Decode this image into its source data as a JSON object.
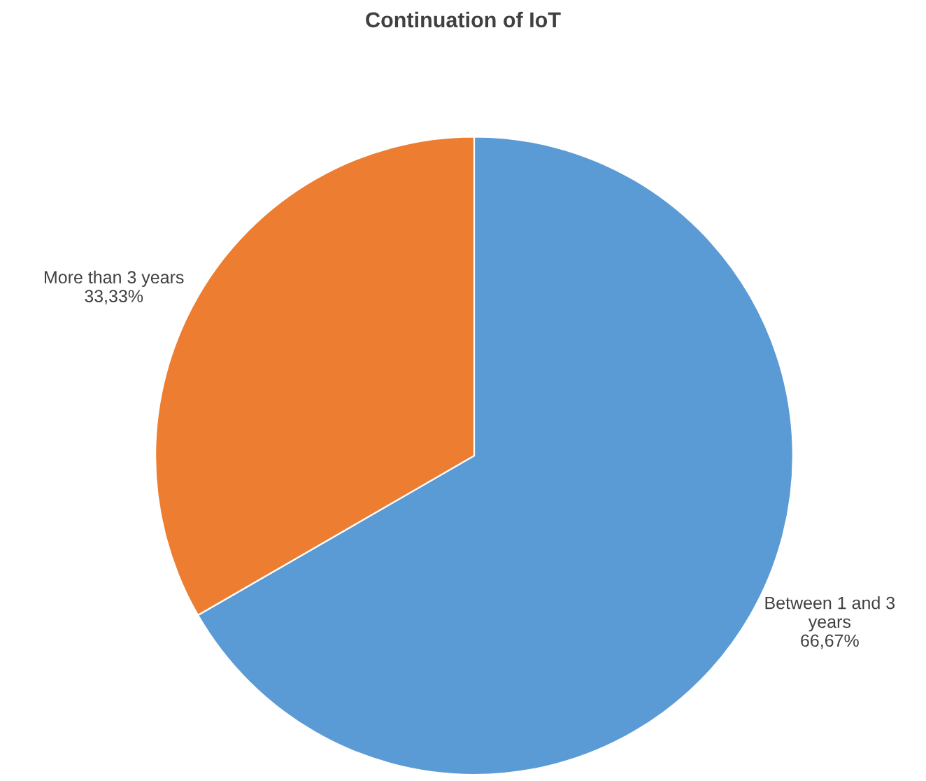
{
  "chart_data": {
    "type": "pie",
    "title": "Continuation of IoT",
    "categories": [
      "Between 1 and 3 years",
      "More than 3 years"
    ],
    "values": [
      66.67,
      33.33
    ],
    "value_labels": [
      "66,67%",
      "33,33%"
    ],
    "colors": [
      "#5b9bd5",
      "#ed7d31"
    ],
    "legend": false
  }
}
